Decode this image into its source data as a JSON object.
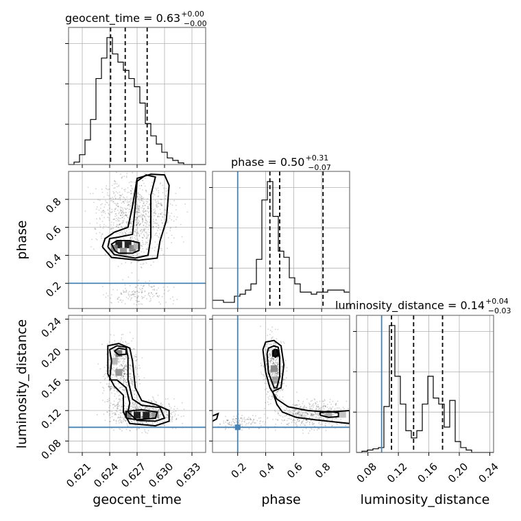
{
  "figure": {
    "type": "corner-plot"
  },
  "colors": {
    "truth": "#4682b4",
    "hist": "#000000",
    "contours": "#000000",
    "grid": "#b0b0b0"
  },
  "parameters": [
    {
      "name": "geocent_time",
      "label": "geocent_time",
      "title_main": "geocent_time = 0.63",
      "title_plus": "+0.00",
      "title_minus": "−0.00"
    },
    {
      "name": "phase",
      "label": "phase",
      "title_main": "phase = 0.50",
      "title_plus": "+0.31",
      "title_minus": "−0.07"
    },
    {
      "name": "luminosity_distance",
      "label": "luminosity_distance",
      "title_main": "luminosity_distance = 0.14",
      "title_plus": "+0.04",
      "title_minus": "−0.03"
    }
  ],
  "chart_data": {
    "type": "corner",
    "parameters": [
      "geocent_time",
      "phase",
      "luminosity_distance"
    ],
    "ranges": {
      "geocent_time": [
        0.6195,
        0.6345
      ],
      "phase": [
        0.02,
        1.0
      ],
      "luminosity_distance": [
        0.065,
        0.245
      ]
    },
    "ticks": {
      "geocent_time": {
        "values": [
          0.621,
          0.624,
          0.627,
          0.63,
          0.633
        ],
        "labels": [
          "0.621",
          "0.624",
          "0.627",
          "0.630",
          "0.633"
        ]
      },
      "phase": {
        "values": [
          0.2,
          0.4,
          0.6,
          0.8
        ],
        "labels": [
          "0.2",
          "0.4",
          "0.6",
          "0.8"
        ]
      },
      "luminosity_distance": {
        "values": [
          0.08,
          0.12,
          0.16,
          0.2,
          0.24
        ],
        "labels": [
          "0.08",
          "0.12",
          "0.16",
          "0.20",
          "0.24"
        ]
      }
    },
    "truths": {
      "geocent_time": null,
      "phase": 0.2,
      "luminosity_distance": 0.098
    },
    "quantiles": {
      "geocent_time": [
        0.6241,
        0.6257,
        0.6281
      ],
      "phase": [
        0.43,
        0.5,
        0.81
      ],
      "luminosity_distance": [
        0.111,
        0.14,
        0.178
      ]
    },
    "histograms": {
      "geocent_time": {
        "edges_start": 0.6195,
        "bin_width": 0.0006,
        "counts": [
          0,
          0.3,
          1.2,
          3,
          5.5,
          10.5,
          13,
          15.5,
          13.5,
          12.5,
          11.5,
          10.5,
          9.5,
          7.5,
          5,
          3.5,
          2.5,
          1.5,
          0.8,
          0.5,
          0.2,
          0,
          0,
          0,
          0
        ]
      },
      "phase": {
        "edges_start": 0.02,
        "bin_width": 0.0392,
        "counts": [
          0.4,
          0.4,
          0.3,
          0.3,
          0.6,
          0.7,
          0.9,
          1.2,
          2.4,
          5.3,
          6.2,
          4.5,
          2.8,
          2.5,
          1.5,
          1.2,
          0.8,
          0.8,
          0.7,
          0.8,
          0.8,
          0.9,
          0.9,
          0.9,
          0.8
        ]
      },
      "luminosity_distance": {
        "edges_start": 0.065,
        "bin_width": 0.0072,
        "counts": [
          0,
          0.1,
          0.2,
          0.3,
          0.4,
          3.8,
          10.5,
          6.3,
          4.0,
          1.8,
          1.2,
          1.8,
          4.0,
          6.3,
          4.5,
          4.0,
          2.1,
          4.3,
          0.9,
          0.4,
          0.2,
          0,
          0,
          0,
          0
        ]
      }
    },
    "panels_2d": [
      {
        "x": "geocent_time",
        "y": "phase",
        "peak": [
          0.6255,
          0.47
        ],
        "density_cells": [
          {
            "x": 0.625,
            "y": 0.475,
            "level": 0.95
          },
          {
            "x": 0.626,
            "y": 0.475,
            "level": 0.95
          },
          {
            "x": 0.6245,
            "y": 0.45,
            "level": 0.5
          },
          {
            "x": 0.6265,
            "y": 0.45,
            "level": 0.5
          },
          {
            "x": 0.6255,
            "y": 0.43,
            "level": 0.45
          },
          {
            "x": 0.627,
            "y": 0.47,
            "level": 0.3
          }
        ],
        "contours": [
          [
            [
              0.6246,
              0.43
            ],
            [
              0.625,
              0.415
            ],
            [
              0.6265,
              0.415
            ],
            [
              0.6272,
              0.435
            ],
            [
              0.6272,
              0.49
            ],
            [
              0.6262,
              0.505
            ],
            [
              0.6248,
              0.505
            ],
            [
              0.6242,
              0.48
            ],
            [
              0.6246,
              0.43
            ]
          ],
          [
            [
              0.6238,
              0.46
            ],
            [
              0.6245,
              0.405
            ],
            [
              0.6268,
              0.38
            ],
            [
              0.6282,
              0.4
            ],
            [
              0.6285,
              0.53
            ],
            [
              0.6285,
              0.83
            ],
            [
              0.629,
              0.96
            ],
            [
              0.628,
              0.975
            ],
            [
              0.627,
              0.93
            ],
            [
              0.6268,
              0.75
            ],
            [
              0.6265,
              0.55
            ],
            [
              0.625,
              0.53
            ],
            [
              0.624,
              0.52
            ],
            [
              0.6238,
              0.46
            ]
          ],
          [
            [
              0.6232,
              0.46
            ],
            [
              0.6242,
              0.385
            ],
            [
              0.6272,
              0.365
            ],
            [
              0.6292,
              0.38
            ],
            [
              0.6295,
              0.5
            ],
            [
              0.6302,
              0.65
            ],
            [
              0.6305,
              0.9
            ],
            [
              0.63,
              0.975
            ],
            [
              0.6285,
              0.98
            ],
            [
              0.627,
              0.95
            ],
            [
              0.6265,
              0.75
            ],
            [
              0.626,
              0.6
            ],
            [
              0.6245,
              0.565
            ],
            [
              0.6235,
              0.52
            ],
            [
              0.6232,
              0.46
            ]
          ]
        ],
        "scatter_regions": [
          {
            "x": [
              0.6225,
              0.631
            ],
            "y": [
              0.36,
              0.98
            ],
            "n": 900
          },
          {
            "x": [
              0.6235,
              0.631
            ],
            "y": [
              0.03,
              0.22
            ],
            "n": 160
          }
        ]
      },
      {
        "x": "geocent_time",
        "y": "luminosity_distance",
        "peak": [
          0.6275,
          0.114
        ],
        "density_cells": [
          {
            "x": 0.627,
            "y": 0.114,
            "level": 0.95
          },
          {
            "x": 0.628,
            "y": 0.114,
            "level": 0.95
          },
          {
            "x": 0.626,
            "y": 0.115,
            "level": 0.55
          },
          {
            "x": 0.629,
            "y": 0.115,
            "level": 0.45
          },
          {
            "x": 0.625,
            "y": 0.195,
            "level": 0.55
          },
          {
            "x": 0.625,
            "y": 0.17,
            "level": 0.45
          },
          {
            "x": 0.6245,
            "y": 0.185,
            "level": 0.3
          }
        ],
        "contours": [
          [
            [
              0.6258,
              0.11
            ],
            [
              0.627,
              0.108
            ],
            [
              0.629,
              0.11
            ],
            [
              0.6292,
              0.118
            ],
            [
              0.6275,
              0.121
            ],
            [
              0.6258,
              0.119
            ],
            [
              0.6258,
              0.11
            ]
          ],
          [
            [
              0.6245,
              0.198
            ],
            [
              0.625,
              0.193
            ],
            [
              0.6258,
              0.194
            ],
            [
              0.6258,
              0.2
            ],
            [
              0.625,
              0.202
            ],
            [
              0.6245,
              0.198
            ]
          ],
          [
            [
              0.6242,
              0.185
            ],
            [
              0.624,
              0.16
            ],
            [
              0.6248,
              0.16
            ],
            [
              0.6258,
              0.15
            ],
            [
              0.6262,
              0.13
            ],
            [
              0.626,
              0.118
            ],
            [
              0.627,
              0.107
            ],
            [
              0.629,
              0.106
            ],
            [
              0.63,
              0.11
            ],
            [
              0.6295,
              0.124
            ],
            [
              0.6275,
              0.127
            ],
            [
              0.6265,
              0.135
            ],
            [
              0.626,
              0.16
            ],
            [
              0.626,
              0.19
            ],
            [
              0.6258,
              0.203
            ],
            [
              0.6248,
              0.205
            ],
            [
              0.624,
              0.2
            ],
            [
              0.6242,
              0.185
            ]
          ],
          [
            [
              0.6238,
              0.195
            ],
            [
              0.6238,
              0.168
            ],
            [
              0.6245,
              0.152
            ],
            [
              0.6255,
              0.14
            ],
            [
              0.6255,
              0.118
            ],
            [
              0.6262,
              0.103
            ],
            [
              0.629,
              0.1
            ],
            [
              0.6305,
              0.106
            ],
            [
              0.6305,
              0.12
            ],
            [
              0.629,
              0.128
            ],
            [
              0.6275,
              0.133
            ],
            [
              0.6268,
              0.15
            ],
            [
              0.6265,
              0.185
            ],
            [
              0.6262,
              0.202
            ],
            [
              0.625,
              0.208
            ],
            [
              0.6238,
              0.205
            ],
            [
              0.6238,
              0.195
            ]
          ]
        ],
        "scatter_regions": [
          {
            "x": [
              0.6232,
              0.6275
            ],
            "y": [
              0.12,
              0.215
            ],
            "n": 500
          },
          {
            "x": [
              0.624,
              0.6315
            ],
            "y": [
              0.095,
              0.135
            ],
            "n": 600
          }
        ]
      },
      {
        "x": "phase",
        "y": "luminosity_distance",
        "peak": [
          0.47,
          0.195
        ],
        "density_cells": [
          {
            "x": 0.47,
            "y": 0.195,
            "level": 1.0
          },
          {
            "x": 0.46,
            "y": 0.175,
            "level": 0.5
          },
          {
            "x": 0.47,
            "y": 0.16,
            "level": 0.4
          },
          {
            "x": 0.85,
            "y": 0.115,
            "level": 0.35
          },
          {
            "x": 0.95,
            "y": 0.115,
            "level": 0.25
          }
        ],
        "contours": [
          [
            [
              0.45,
              0.193
            ],
            [
              0.47,
              0.19
            ],
            [
              0.49,
              0.194
            ],
            [
              0.48,
              0.2
            ],
            [
              0.46,
              0.2
            ],
            [
              0.45,
              0.193
            ]
          ],
          [
            [
              0.79,
              0.114
            ],
            [
              0.85,
              0.111
            ],
            [
              0.92,
              0.112
            ],
            [
              0.92,
              0.117
            ],
            [
              0.85,
              0.119
            ],
            [
              0.79,
              0.117
            ],
            [
              0.79,
              0.114
            ]
          ],
          [
            [
              0.41,
              0.195
            ],
            [
              0.42,
              0.17
            ],
            [
              0.46,
              0.15
            ],
            [
              0.48,
              0.15
            ],
            [
              0.5,
              0.165
            ],
            [
              0.5,
              0.19
            ],
            [
              0.49,
              0.203
            ],
            [
              0.46,
              0.205
            ],
            [
              0.42,
              0.202
            ],
            [
              0.41,
              0.195
            ]
          ],
          [
            [
              0.38,
              0.2
            ],
            [
              0.4,
              0.17
            ],
            [
              0.43,
              0.15
            ],
            [
              0.48,
              0.135
            ],
            [
              0.56,
              0.125
            ],
            [
              0.7,
              0.12
            ],
            [
              0.85,
              0.118
            ],
            [
              1.0,
              0.12
            ],
            [
              1.0,
              0.103
            ],
            [
              0.9,
              0.105
            ],
            [
              0.75,
              0.108
            ],
            [
              0.62,
              0.111
            ],
            [
              0.52,
              0.118
            ],
            [
              0.48,
              0.128
            ],
            [
              0.45,
              0.145
            ],
            [
              0.51,
              0.15
            ],
            [
              0.53,
              0.18
            ],
            [
              0.51,
              0.205
            ],
            [
              0.46,
              0.212
            ],
            [
              0.4,
              0.21
            ],
            [
              0.38,
              0.2
            ]
          ],
          [
            [
              0.02,
              0.113
            ],
            [
              0.06,
              0.116
            ],
            [
              0.05,
              0.109
            ],
            [
              0.02,
              0.106
            ]
          ]
        ],
        "scatter_regions": [
          {
            "x": [
              0.38,
              0.54
            ],
            "y": [
              0.13,
              0.22
            ],
            "n": 500
          },
          {
            "x": [
              0.45,
              1.0
            ],
            "y": [
              0.095,
              0.135
            ],
            "n": 500
          },
          {
            "x": [
              0.02,
              0.45
            ],
            "y": [
              0.095,
              0.115
            ],
            "n": 120
          }
        ]
      }
    ]
  }
}
